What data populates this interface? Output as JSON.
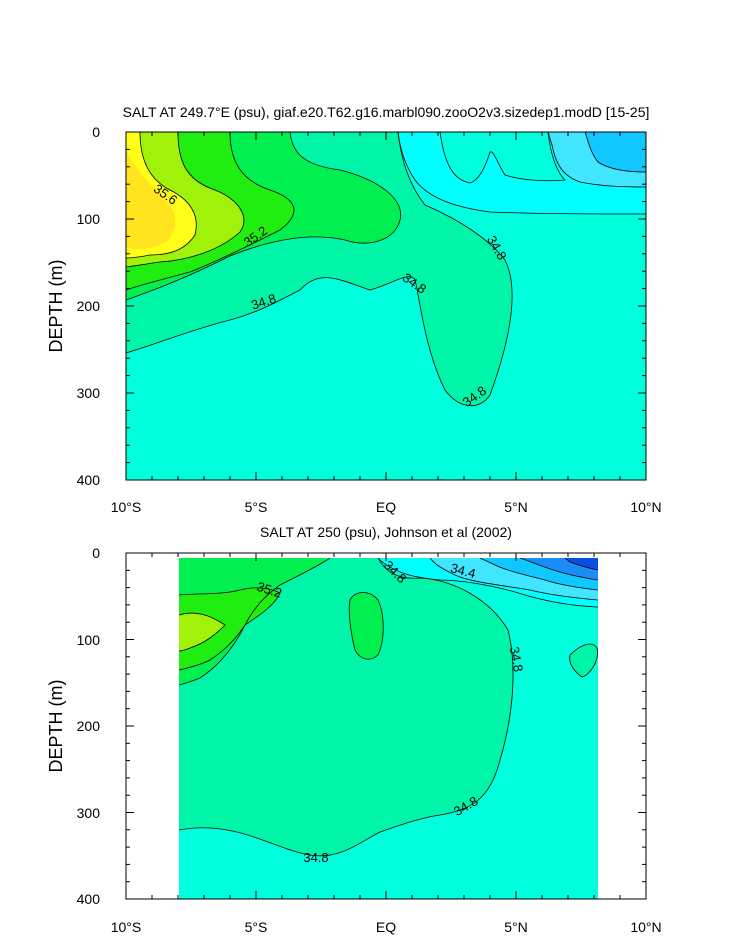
{
  "chart_data": [
    {
      "type": "contour",
      "title": "SALT AT 249.7°E (psu), giaf.e20.T62.g16.marbl090.zooO2v3.sizedep1.modD [15-25]",
      "ylabel": "DEPTH (m)",
      "x_ticks": [
        "10°S",
        "5°S",
        "EQ",
        "5°N",
        "10°N"
      ],
      "y_ticks": [
        "0",
        "100",
        "200",
        "300",
        "400"
      ],
      "xlim": [
        -10,
        10
      ],
      "ylim": [
        400,
        0
      ],
      "contour_labels": [
        "35.6",
        "35.2",
        "34.8",
        "34.8",
        "34.8",
        "34.8"
      ],
      "colors": {
        "fill_low_1": "#0a4fe0",
        "fill_low_2": "#1a8cf5",
        "fill_low_3": "#10c8ff",
        "fill_low_4": "#40e6ff",
        "fill_low_5": "#00ffff",
        "fill_base": "#00ffdd",
        "fill_34_8": "#00f5a8",
        "fill_35_0": "#00f050",
        "fill_35_2": "#20ee10",
        "fill_35_4": "#a0f20a",
        "fill_35_6": "#ffff18",
        "fill_35_8": "#ffe41e"
      }
    },
    {
      "type": "contour",
      "title": "SALT AT 250 (psu), Johnson et al (2002)",
      "ylabel": "DEPTH (m)",
      "x_ticks": [
        "10°S",
        "5°S",
        "EQ",
        "5°N",
        "10°N"
      ],
      "y_ticks": [
        "0",
        "100",
        "200",
        "300",
        "400"
      ],
      "xlim": [
        -10,
        10
      ],
      "ylim": [
        400,
        0
      ],
      "contour_labels": [
        "35.2",
        "34.8",
        "34.4",
        "34.8",
        "34.8",
        "34.8"
      ]
    }
  ]
}
